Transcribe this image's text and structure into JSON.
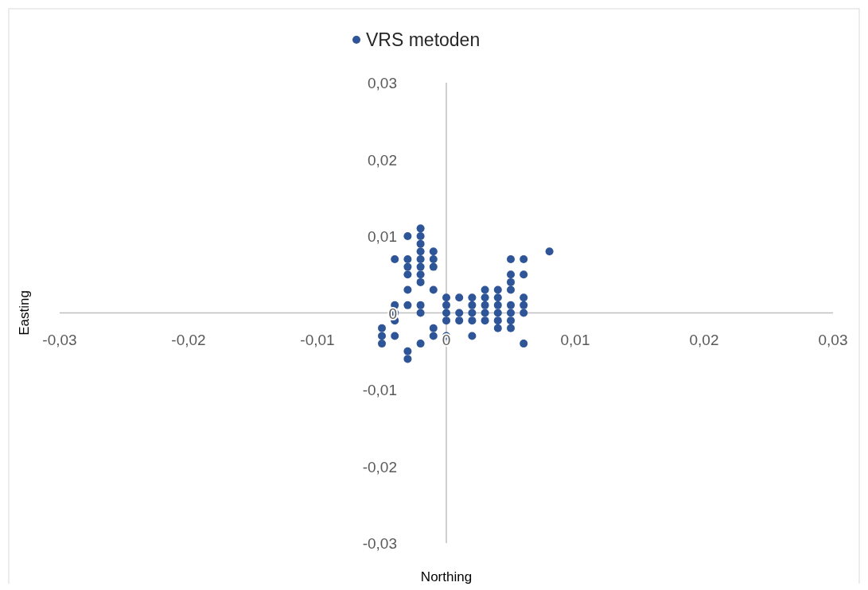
{
  "chart_data": {
    "type": "scatter",
    "xlabel": "Northing",
    "ylabel": "Easting",
    "legend": "top",
    "marker": "circle",
    "xlim": [
      -0.03,
      0.03
    ],
    "ylim": [
      -0.03,
      0.03
    ],
    "xticks": [
      {
        "value": -0.03,
        "label": "-0,03"
      },
      {
        "value": -0.02,
        "label": "-0,02"
      },
      {
        "value": -0.01,
        "label": "-0,01"
      },
      {
        "value": 0,
        "label": "0"
      },
      {
        "value": 0.01,
        "label": "0,01"
      },
      {
        "value": 0.02,
        "label": "0,02"
      },
      {
        "value": 0.03,
        "label": "0,03"
      }
    ],
    "yticks": [
      {
        "value": -0.03,
        "label": "-0,03"
      },
      {
        "value": -0.02,
        "label": "-0,02"
      },
      {
        "value": -0.01,
        "label": "-0,01"
      },
      {
        "value": 0,
        "label": "0"
      },
      {
        "value": 0.01,
        "label": "0,01"
      },
      {
        "value": 0.02,
        "label": "0,02"
      },
      {
        "value": 0.03,
        "label": "0,03"
      }
    ],
    "series": [
      {
        "name": "VRS metoden",
        "color": "#2e5597",
        "x": [
          -0.005,
          -0.005,
          -0.005,
          -0.004,
          -0.004,
          -0.004,
          -0.004,
          -0.004,
          -0.003,
          -0.003,
          -0.003,
          -0.003,
          -0.003,
          -0.003,
          -0.003,
          -0.003,
          -0.002,
          -0.002,
          -0.002,
          -0.002,
          -0.002,
          -0.002,
          -0.002,
          -0.002,
          -0.002,
          -0.002,
          -0.002,
          -0.001,
          -0.001,
          -0.001,
          -0.001,
          -0.001,
          -0.001,
          0,
          0,
          0,
          0,
          0,
          0.001,
          0.001,
          0.001,
          0.002,
          0.002,
          0.002,
          0.002,
          0.002,
          0.003,
          0.003,
          0.003,
          0.003,
          0.003,
          0.004,
          0.004,
          0.004,
          0.004,
          0.004,
          0.004,
          0.005,
          0.005,
          0.005,
          0.005,
          0.005,
          0.005,
          0.005,
          0.005,
          0.006,
          0.006,
          0.006,
          0.006,
          0.006,
          0.006,
          0.008
        ],
        "values": [
          -0.002,
          -0.003,
          -0.004,
          0.007,
          0.001,
          0,
          -0.001,
          -0.003,
          0.01,
          0.007,
          0.006,
          0.005,
          0.003,
          0.001,
          -0.005,
          -0.006,
          0.011,
          0.01,
          0.009,
          0.008,
          0.007,
          0.006,
          0.005,
          0.004,
          0.001,
          0,
          -0.004,
          0.008,
          0.007,
          0.006,
          0.003,
          -0.002,
          -0.003,
          0.002,
          0.001,
          0,
          -0.001,
          -0.003,
          0.002,
          0,
          -0.001,
          0.002,
          0.001,
          0,
          -0.001,
          -0.003,
          0.003,
          0.002,
          0.001,
          0,
          -0.001,
          0.003,
          0.002,
          0.001,
          0,
          -0.001,
          -0.002,
          0.007,
          0.005,
          0.004,
          0.003,
          0.001,
          0,
          -0.001,
          -0.002,
          0.007,
          0.005,
          0.002,
          0.001,
          0,
          -0.004,
          0.008
        ]
      }
    ]
  }
}
